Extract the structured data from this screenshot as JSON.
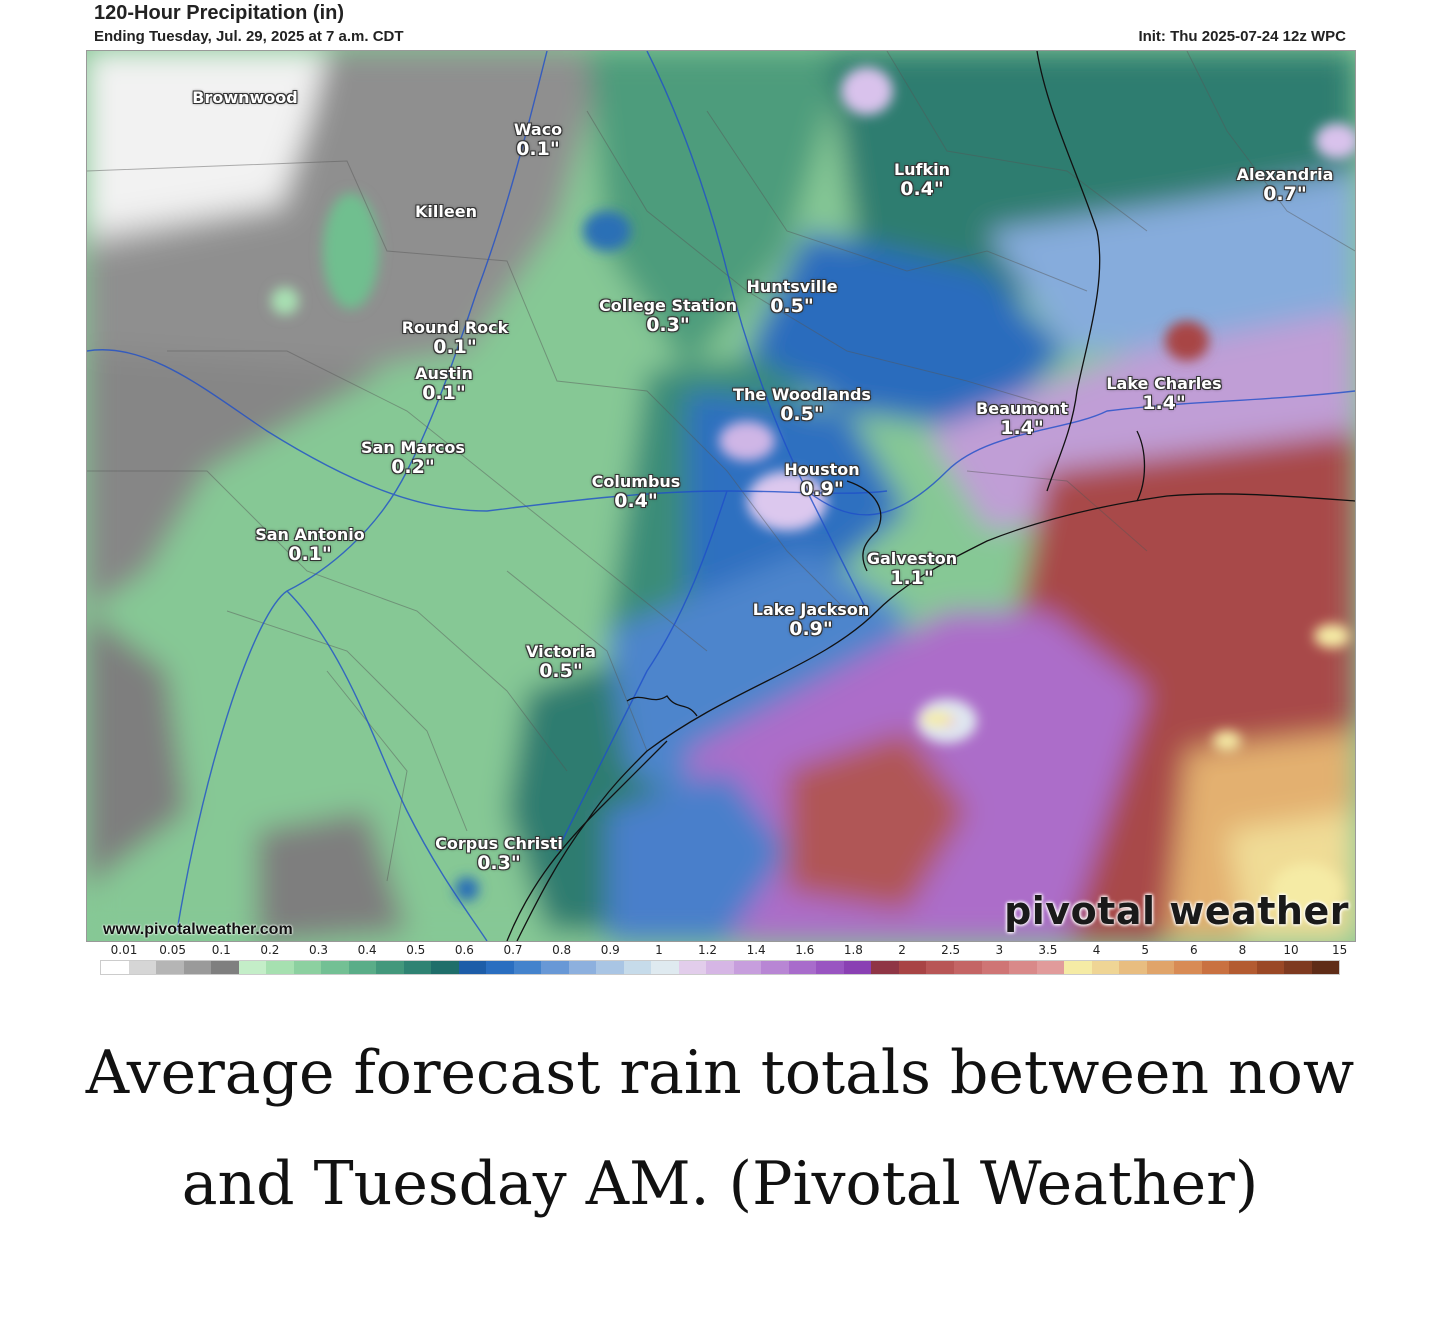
{
  "header": {
    "title": "120-Hour Precipitation (in)",
    "subtitle": "Ending Tuesday, Jul. 29, 2025 at 7 a.m. CDT",
    "init": "Init: Thu 2025-07-24 12z WPC"
  },
  "cities": [
    {
      "name": "Brownwood",
      "value": ""
    },
    {
      "name": "Waco",
      "value": "0.1\""
    },
    {
      "name": "Killeen",
      "value": ""
    },
    {
      "name": "Lufkin",
      "value": "0.4\""
    },
    {
      "name": "Alexandria",
      "value": "0.7\""
    },
    {
      "name": "Huntsville",
      "value": "0.5\""
    },
    {
      "name": "College Station",
      "value": "0.3\""
    },
    {
      "name": "Round Rock",
      "value": "0.1\""
    },
    {
      "name": "Austin",
      "value": "0.1\""
    },
    {
      "name": "Lake Charles",
      "value": "1.4\""
    },
    {
      "name": "The Woodlands",
      "value": "0.5\""
    },
    {
      "name": "Beaumont",
      "value": "1.4\""
    },
    {
      "name": "San Marcos",
      "value": "0.2\""
    },
    {
      "name": "Houston",
      "value": "0.9\""
    },
    {
      "name": "Columbus",
      "value": "0.4\""
    },
    {
      "name": "San Antonio",
      "value": "0.1\""
    },
    {
      "name": "Galveston",
      "value": "1.1\""
    },
    {
      "name": "Lake Jackson",
      "value": "0.9\""
    },
    {
      "name": "Victoria",
      "value": "0.5\""
    },
    {
      "name": "Corpus Christi",
      "value": "0.3\""
    }
  ],
  "watermark": {
    "url": "www.pivotalweather.com",
    "brand": "pivotal weather"
  },
  "legend": {
    "ticks": [
      "0.01",
      "0.05",
      "0.1",
      "0.2",
      "0.3",
      "0.4",
      "0.5",
      "0.6",
      "0.7",
      "0.8",
      "0.9",
      "1",
      "1.2",
      "1.4",
      "1.6",
      "1.8",
      "2",
      "2.5",
      "3",
      "3.5",
      "4",
      "5",
      "6",
      "8",
      "10",
      "15"
    ],
    "colors": [
      "#ffffff",
      "#d6d6d6",
      "#b5b5b5",
      "#9a9a9a",
      "#7f7f7f",
      "#c4eec8",
      "#a6e0b0",
      "#8cd0a0",
      "#73c094",
      "#5aad88",
      "#43987c",
      "#2f8373",
      "#1f6e6a",
      "#1d5da8",
      "#2a6ec0",
      "#4483cc",
      "#6898d6",
      "#8db0de",
      "#a9c5e4",
      "#c6dbea",
      "#dfeaf0",
      "#e2cdeb",
      "#d6b6e5",
      "#c79edd",
      "#b886d4",
      "#a86ccb",
      "#9955c1",
      "#8a40b3",
      "#8f3545",
      "#a84445",
      "#b85656",
      "#c46565",
      "#cf7575",
      "#d98989",
      "#e19b9b",
      "#f5eba5",
      "#efd595",
      "#e8bd80",
      "#e0a46a",
      "#d88b55",
      "#c97141",
      "#b35b31",
      "#9a4826",
      "#7e3a20",
      "#5f2c17"
    ]
  },
  "caption": "Average forecast rain totals between now and Tuesday AM. (Pivotal Weather)"
}
